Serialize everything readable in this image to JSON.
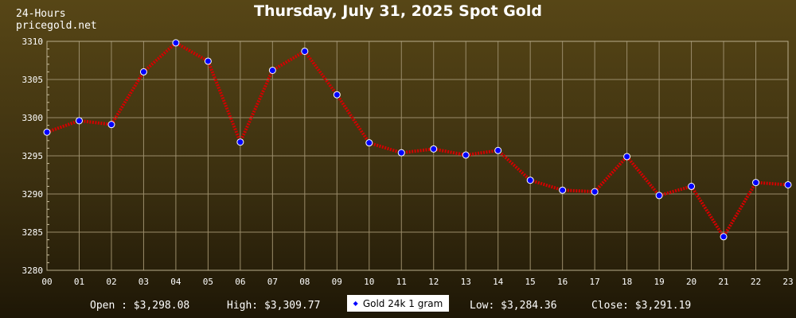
{
  "header": {
    "line1": "24-Hours",
    "line2": "pricegold.net",
    "title": "Thursday, July 31, 2025 Spot Gold"
  },
  "stats": {
    "open": "Open : $3,298.08",
    "high": "High: $3,309.77",
    "low": "Low: $3,284.36",
    "close": "Close: $3,291.19"
  },
  "legend": {
    "label": "Gold 24k 1 gram"
  },
  "colors": {
    "line": "#d40000",
    "marker": "#0000ff",
    "grid": "#9a8c6a"
  },
  "chart_data": {
    "type": "line",
    "title": "Thursday, July 31, 2025 Spot Gold",
    "xlabel": "",
    "ylabel": "",
    "categories": [
      "00",
      "01",
      "02",
      "03",
      "04",
      "05",
      "06",
      "07",
      "08",
      "09",
      "10",
      "11",
      "12",
      "13",
      "14",
      "15",
      "16",
      "17",
      "18",
      "19",
      "20",
      "21",
      "22",
      "23"
    ],
    "series": [
      {
        "name": "Gold 24k 1 gram",
        "values": [
          3298.1,
          3299.6,
          3299.1,
          3306.0,
          3309.8,
          3307.4,
          3296.8,
          3306.2,
          3308.7,
          3303.0,
          3296.7,
          3295.4,
          3295.9,
          3295.1,
          3295.7,
          3291.8,
          3290.5,
          3290.3,
          3294.9,
          3289.8,
          3291.0,
          3284.4,
          3291.5,
          3291.2
        ]
      }
    ],
    "ylim": [
      3280,
      3310
    ],
    "yticks": [
      3280,
      3285,
      3290,
      3295,
      3300,
      3305,
      3310
    ],
    "grid": true,
    "legend_position": "bottom-center"
  }
}
